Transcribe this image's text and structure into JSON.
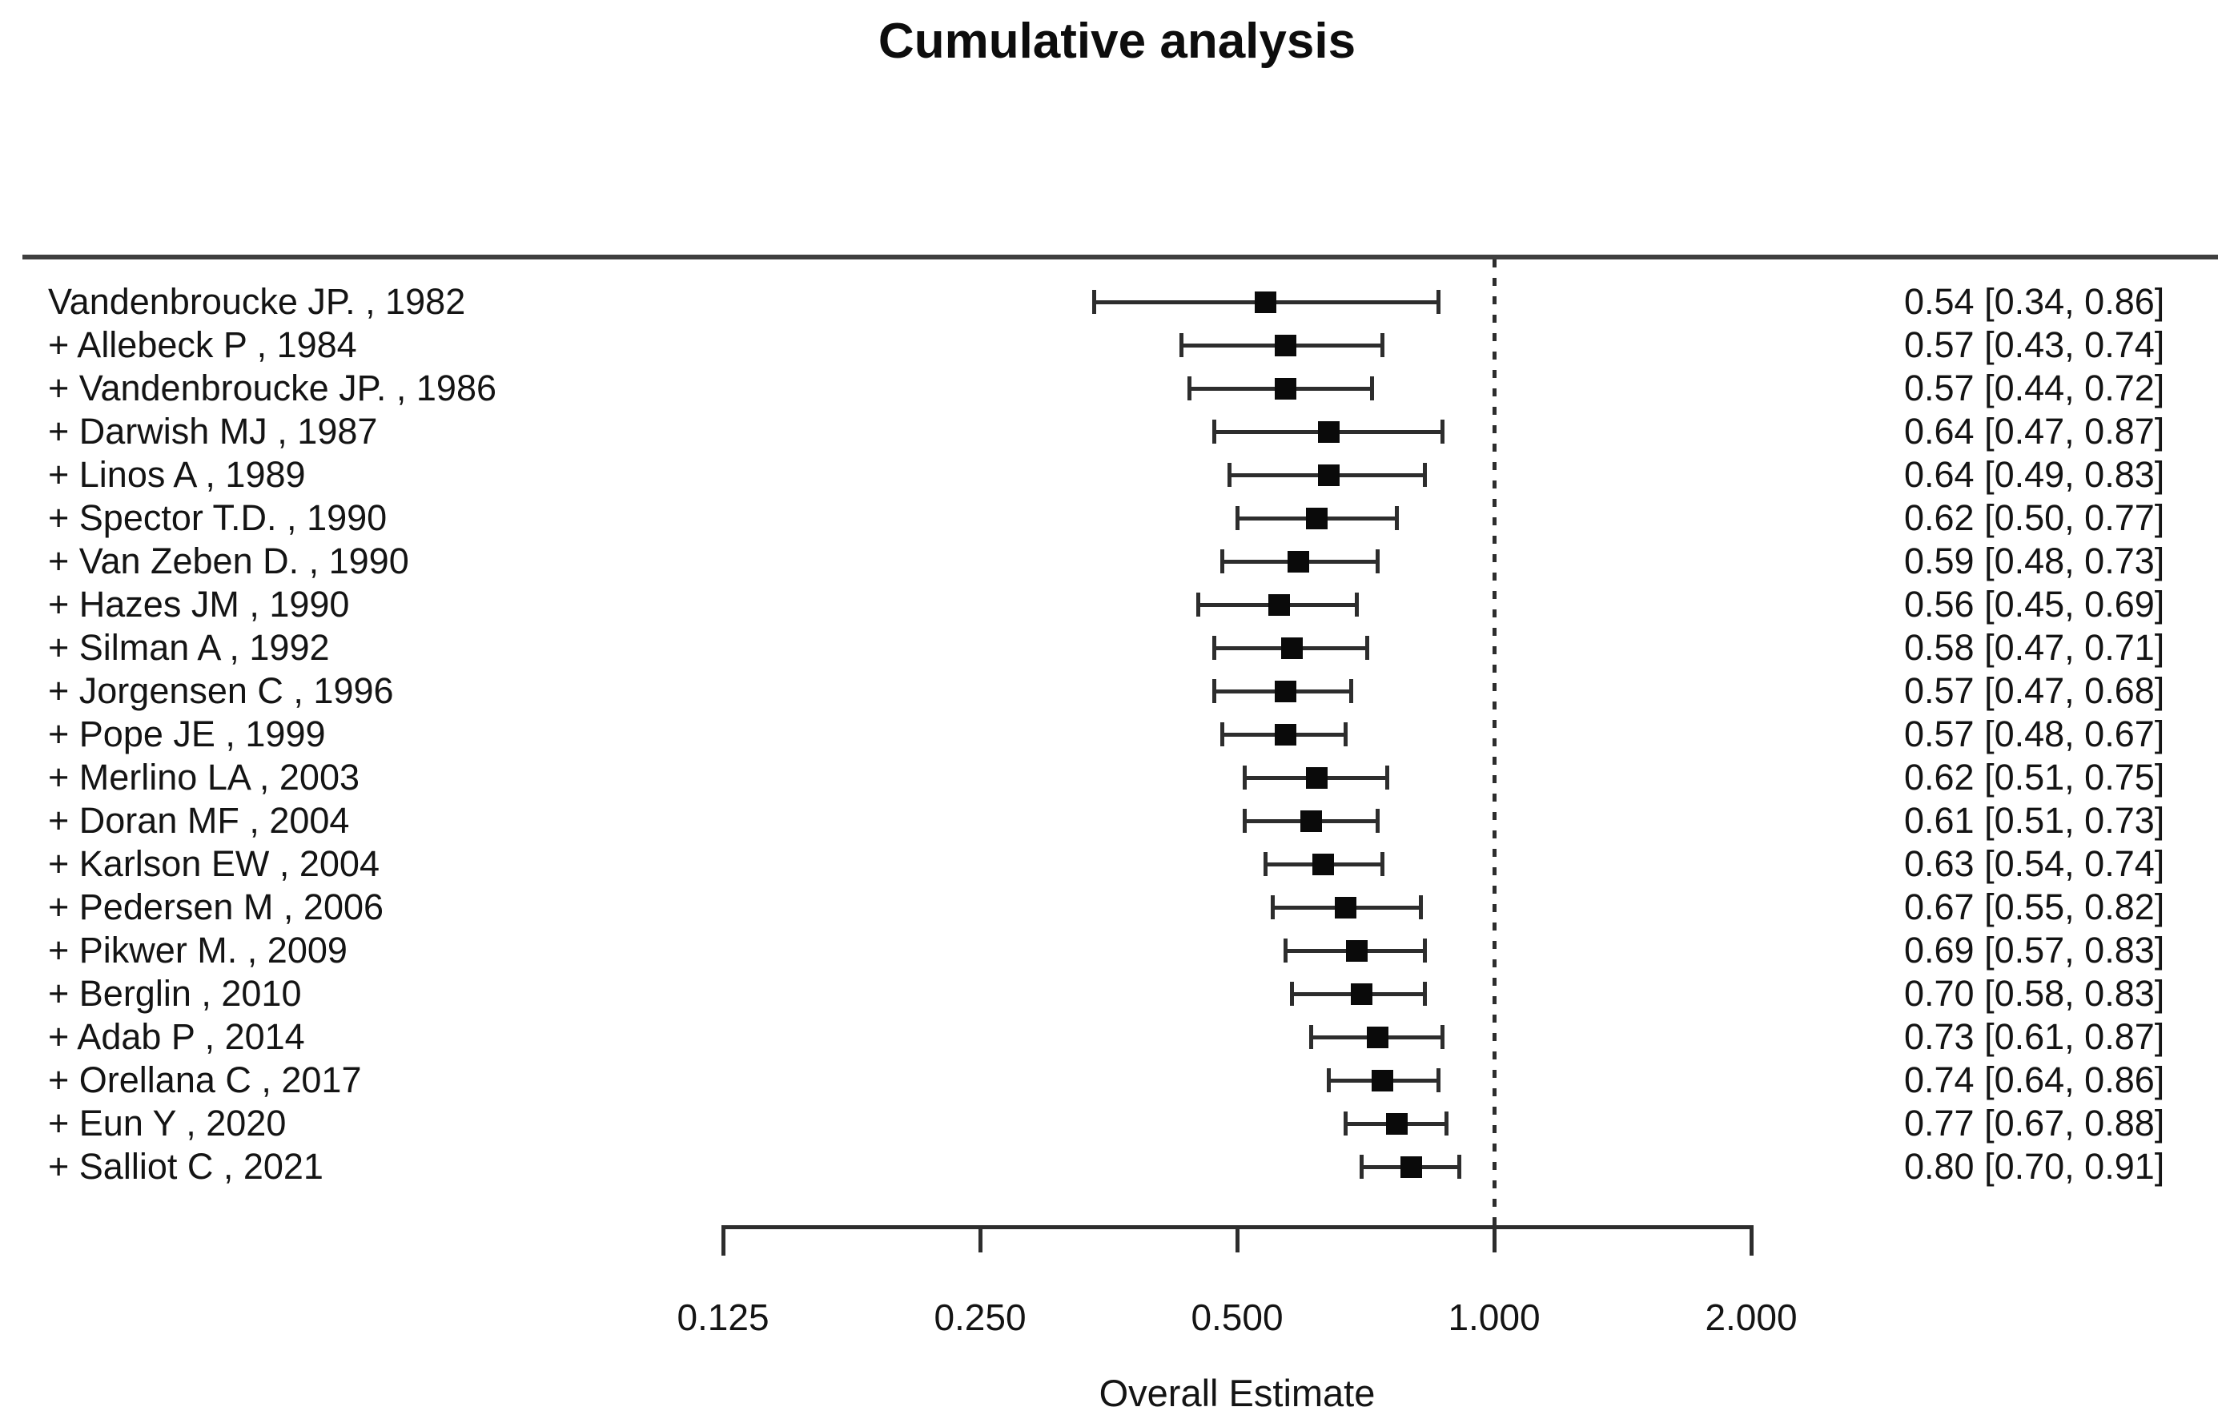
{
  "title": "Cumulative analysis",
  "xlabel": "Overall Estimate",
  "colors": {
    "background": "#ffffff",
    "text": "#141414",
    "line": "#2d2d2d",
    "marker": "#0a0a0a",
    "separator": "#3f3f3f"
  },
  "chart_data": {
    "type": "forest",
    "title": "Cumulative analysis",
    "xlabel": "Overall Estimate",
    "scale": "log2",
    "xlim": [
      0.125,
      2.0
    ],
    "reference_line": 1.0,
    "x_ticks": [
      0.125,
      0.25,
      0.5,
      1.0,
      2.0
    ],
    "x_tick_labels": [
      "0.125",
      "0.250",
      "0.500",
      "1.000",
      "2.000"
    ],
    "grid": false,
    "legend": "none",
    "studies": [
      {
        "label": "Vandenbroucke JP. , 1982",
        "estimate": 0.54,
        "ci_low": 0.34,
        "ci_high": 0.86,
        "estimate_text": "0.54 [0.34, 0.86]"
      },
      {
        "label": "+ Allebeck P , 1984",
        "estimate": 0.57,
        "ci_low": 0.43,
        "ci_high": 0.74,
        "estimate_text": "0.57 [0.43, 0.74]"
      },
      {
        "label": "+ Vandenbroucke JP. , 1986",
        "estimate": 0.57,
        "ci_low": 0.44,
        "ci_high": 0.72,
        "estimate_text": "0.57 [0.44, 0.72]"
      },
      {
        "label": "+ Darwish MJ , 1987",
        "estimate": 0.64,
        "ci_low": 0.47,
        "ci_high": 0.87,
        "estimate_text": "0.64 [0.47, 0.87]"
      },
      {
        "label": "+ Linos A , 1989",
        "estimate": 0.64,
        "ci_low": 0.49,
        "ci_high": 0.83,
        "estimate_text": "0.64 [0.49, 0.83]"
      },
      {
        "label": "+ Spector T.D. , 1990",
        "estimate": 0.62,
        "ci_low": 0.5,
        "ci_high": 0.77,
        "estimate_text": "0.62 [0.50, 0.77]"
      },
      {
        "label": "+ Van Zeben D. , 1990",
        "estimate": 0.59,
        "ci_low": 0.48,
        "ci_high": 0.73,
        "estimate_text": "0.59 [0.48, 0.73]"
      },
      {
        "label": "+ Hazes JM , 1990",
        "estimate": 0.56,
        "ci_low": 0.45,
        "ci_high": 0.69,
        "estimate_text": "0.56 [0.45, 0.69]"
      },
      {
        "label": "+ Silman A , 1992",
        "estimate": 0.58,
        "ci_low": 0.47,
        "ci_high": 0.71,
        "estimate_text": "0.58 [0.47, 0.71]"
      },
      {
        "label": "+ Jorgensen C , 1996",
        "estimate": 0.57,
        "ci_low": 0.47,
        "ci_high": 0.68,
        "estimate_text": "0.57 [0.47, 0.68]"
      },
      {
        "label": "+ Pope JE , 1999",
        "estimate": 0.57,
        "ci_low": 0.48,
        "ci_high": 0.67,
        "estimate_text": "0.57 [0.48, 0.67]"
      },
      {
        "label": "+ Merlino LA , 2003",
        "estimate": 0.62,
        "ci_low": 0.51,
        "ci_high": 0.75,
        "estimate_text": "0.62 [0.51, 0.75]"
      },
      {
        "label": "+ Doran MF , 2004",
        "estimate": 0.61,
        "ci_low": 0.51,
        "ci_high": 0.73,
        "estimate_text": "0.61 [0.51, 0.73]"
      },
      {
        "label": "+ Karlson EW , 2004",
        "estimate": 0.63,
        "ci_low": 0.54,
        "ci_high": 0.74,
        "estimate_text": "0.63 [0.54, 0.74]"
      },
      {
        "label": "+ Pedersen M , 2006",
        "estimate": 0.67,
        "ci_low": 0.55,
        "ci_high": 0.82,
        "estimate_text": "0.67 [0.55, 0.82]"
      },
      {
        "label": "+ Pikwer M. , 2009",
        "estimate": 0.69,
        "ci_low": 0.57,
        "ci_high": 0.83,
        "estimate_text": "0.69 [0.57, 0.83]"
      },
      {
        "label": "+ Berglin , 2010",
        "estimate": 0.7,
        "ci_low": 0.58,
        "ci_high": 0.83,
        "estimate_text": "0.70 [0.58, 0.83]"
      },
      {
        "label": "+ Adab P , 2014",
        "estimate": 0.73,
        "ci_low": 0.61,
        "ci_high": 0.87,
        "estimate_text": "0.73 [0.61, 0.87]"
      },
      {
        "label": "+ Orellana C , 2017",
        "estimate": 0.74,
        "ci_low": 0.64,
        "ci_high": 0.86,
        "estimate_text": "0.74 [0.64, 0.86]"
      },
      {
        "label": "+ Eun Y , 2020",
        "estimate": 0.77,
        "ci_low": 0.67,
        "ci_high": 0.88,
        "estimate_text": "0.77 [0.67, 0.88]"
      },
      {
        "label": "+ Salliot C , 2021",
        "estimate": 0.8,
        "ci_low": 0.7,
        "ci_high": 0.91,
        "estimate_text": "0.80 [0.70, 0.91]"
      }
    ]
  }
}
